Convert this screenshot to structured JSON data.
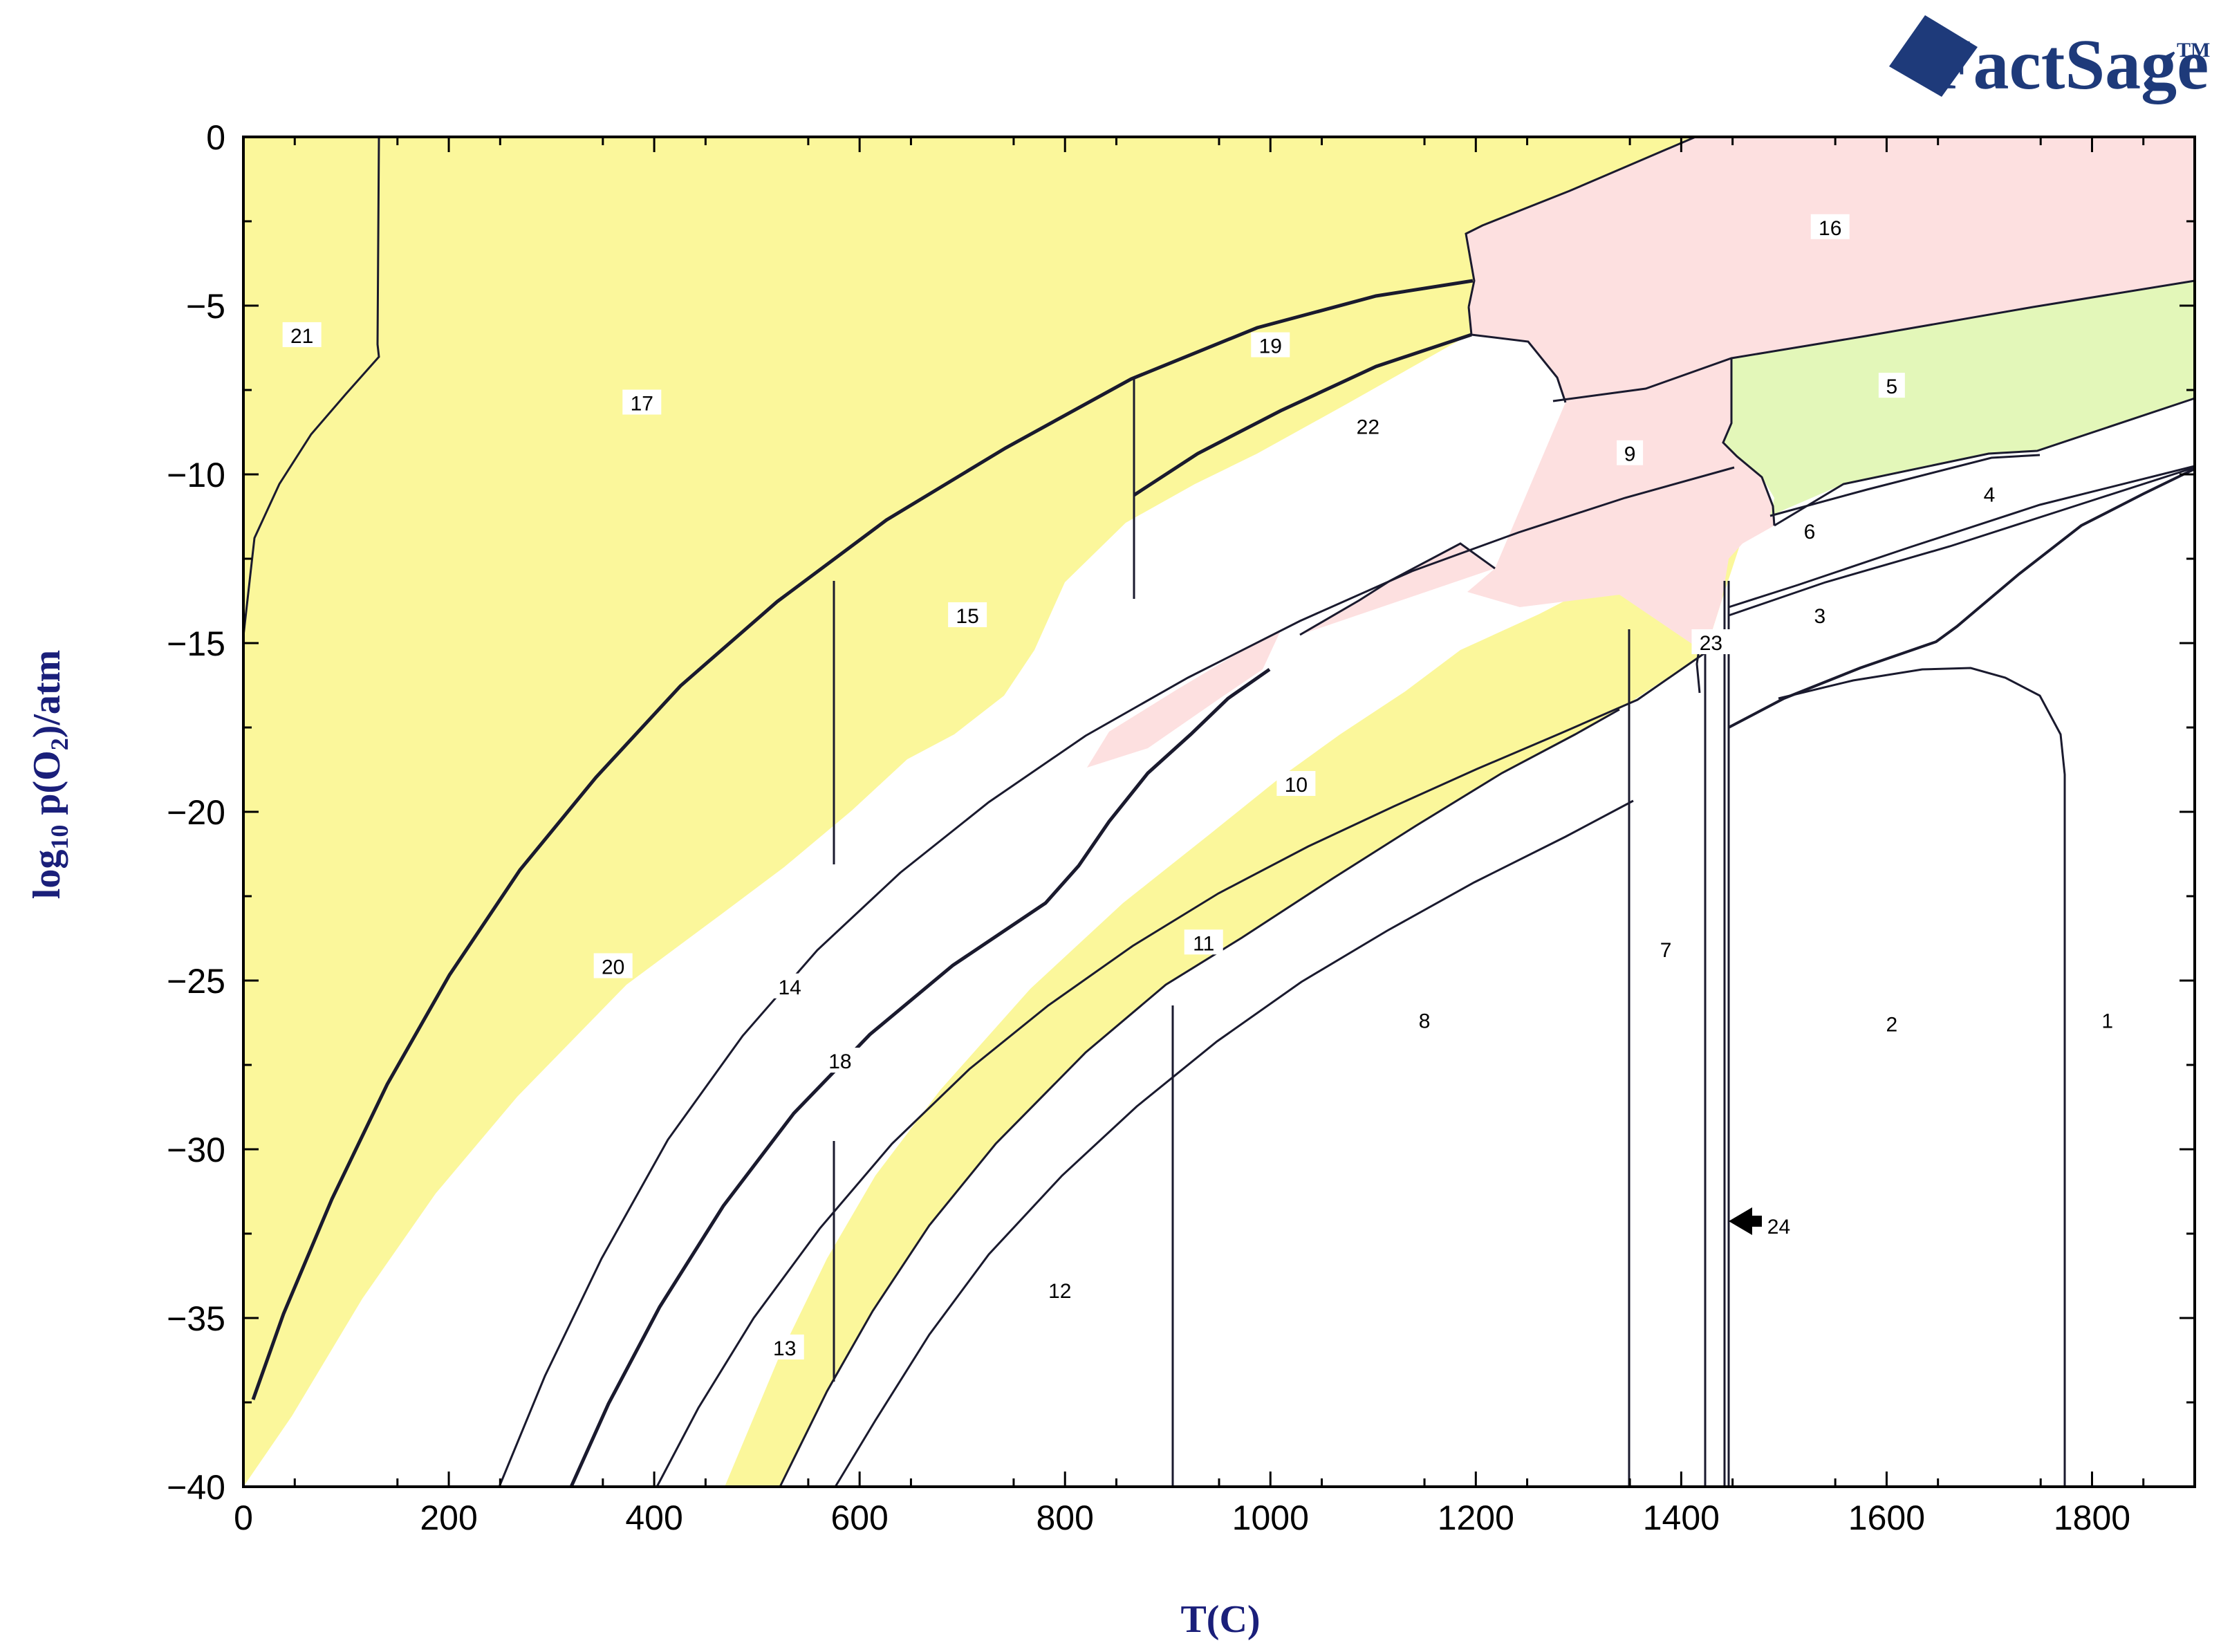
{
  "brand": {
    "logo_text": "FactSage",
    "trademark": "TM"
  },
  "chart_data": {
    "type": "phase-diagram",
    "xlabel": "T(C)",
    "ylabel_base": "log",
    "ylabel_sub": "10",
    "ylabel_rest": " p(O",
    "ylabel_sub2": "2",
    "ylabel_end": ")/atm",
    "xlim": [
      0,
      1900
    ],
    "ylim": [
      -40,
      0
    ],
    "x_ticks": [
      0,
      200,
      400,
      600,
      800,
      1000,
      1200,
      1400,
      1600,
      1800
    ],
    "y_ticks": [
      0,
      -5,
      -10,
      -15,
      -20,
      -25,
      -30,
      -35,
      -40
    ],
    "y_tick_labels": [
      "0",
      "−5",
      "−10",
      "−15",
      "−20",
      "−25",
      "−30",
      "−35",
      "−40"
    ],
    "colors": {
      "yellow": "#fbf79b",
      "pink": "#fde0e0",
      "green": "#e3f7b9",
      "white": "#ffffff",
      "line": "#1a1a2e",
      "axis_title": "#1a1f7a"
    },
    "regions": [
      {
        "label": "1",
        "x": 1815,
        "y": -26.2
      },
      {
        "label": "2",
        "x": 1605,
        "y": -26.3
      },
      {
        "label": "3",
        "x": 1535,
        "y": -14.2
      },
      {
        "label": "4",
        "x": 1700,
        "y": -10.6
      },
      {
        "label": "5",
        "x": 1605,
        "y": -7.4
      },
      {
        "label": "6",
        "x": 1525,
        "y": -11.7
      },
      {
        "label": "7",
        "x": 1385,
        "y": -24.1
      },
      {
        "label": "8",
        "x": 1150,
        "y": -26.2
      },
      {
        "label": "9",
        "x": 1350,
        "y": -9.4
      },
      {
        "label": "10",
        "x": 1025,
        "y": -19.2
      },
      {
        "label": "11",
        "x": 935,
        "y": -23.9
      },
      {
        "label": "12",
        "x": 795,
        "y": -34.2
      },
      {
        "label": "13",
        "x": 527,
        "y": -35.9
      },
      {
        "label": "14",
        "x": 532,
        "y": -25.2
      },
      {
        "label": "15",
        "x": 705,
        "y": -14.2
      },
      {
        "label": "16",
        "x": 1545,
        "y": -2.7
      },
      {
        "label": "17",
        "x": 388,
        "y": -7.9
      },
      {
        "label": "18",
        "x": 581,
        "y": -27.4
      },
      {
        "label": "19",
        "x": 1000,
        "y": -6.2
      },
      {
        "label": "20",
        "x": 360,
        "y": -24.6
      },
      {
        "label": "21",
        "x": 57,
        "y": -5.9
      },
      {
        "label": "22",
        "x": 1095,
        "y": -8.6
      },
      {
        "label": "23",
        "x": 1429,
        "y": -15.0
      },
      {
        "label": "24",
        "x": 1495,
        "y": -32.3
      }
    ]
  }
}
